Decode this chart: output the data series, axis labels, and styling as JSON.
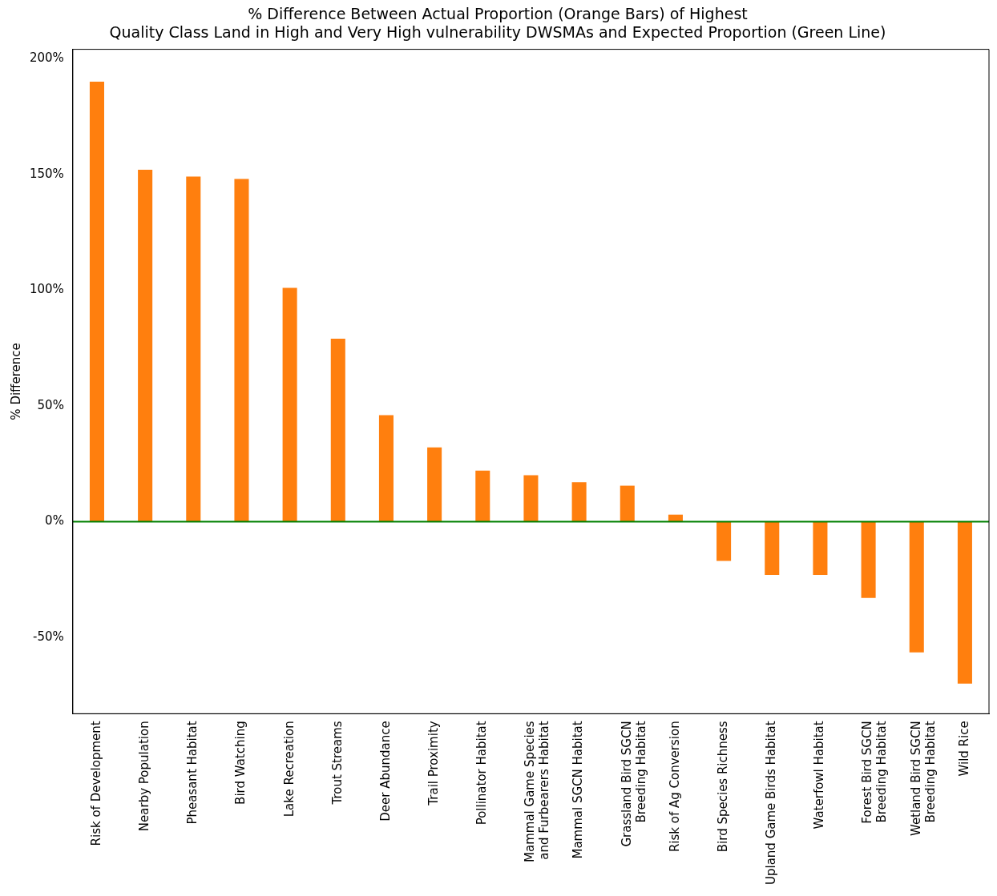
{
  "chart_data": {
    "type": "bar",
    "title": "% Difference Between Actual Proportion (Orange Bars) of Highest\nQuality Class Land in High and Very High vulnerability DWSMAs and Expected Proportion (Green Line)",
    "ylabel": "% Difference",
    "categories": [
      "Risk of Development",
      "Nearby Population",
      "Pheasant Habitat",
      "Bird Watching",
      "Lake Recreation",
      "Trout Streams",
      "Deer Abundance",
      "Trail Proximity",
      "Pollinator Habitat",
      "Mammal Game Species and Furbearers Habitat",
      "Mammal SGCN Habitat",
      "Grassland Bird SGCN Breeding Habitat",
      "Risk of Ag Conversion",
      "Bird Species Richness",
      "Upland Game Birds Habitat",
      "Waterfowl Habitat",
      "Forest Bird SGCN Breeding Habitat",
      "Wetland Bird SGCN Breeding Habitat",
      "Wild Rice"
    ],
    "values": [
      190,
      152,
      149,
      148,
      101,
      79,
      46,
      32,
      22,
      20,
      17,
      15.5,
      3,
      -17,
      -23,
      -23,
      -33,
      -56.5,
      -70
    ],
    "color": "#ff7f0e",
    "ylim": [
      -83,
      204
    ],
    "yticks": [
      {
        "value": -50,
        "label": "-50%"
      },
      {
        "value": 0,
        "label": "0%"
      },
      {
        "value": 50,
        "label": "50%"
      },
      {
        "value": 100,
        "label": "100%"
      },
      {
        "value": 150,
        "label": "150%"
      },
      {
        "value": 200,
        "label": "200%"
      }
    ],
    "ref_lines": [
      {
        "axis": "y",
        "value": 0,
        "color": "#008000"
      }
    ],
    "grid": false,
    "legend": false
  }
}
